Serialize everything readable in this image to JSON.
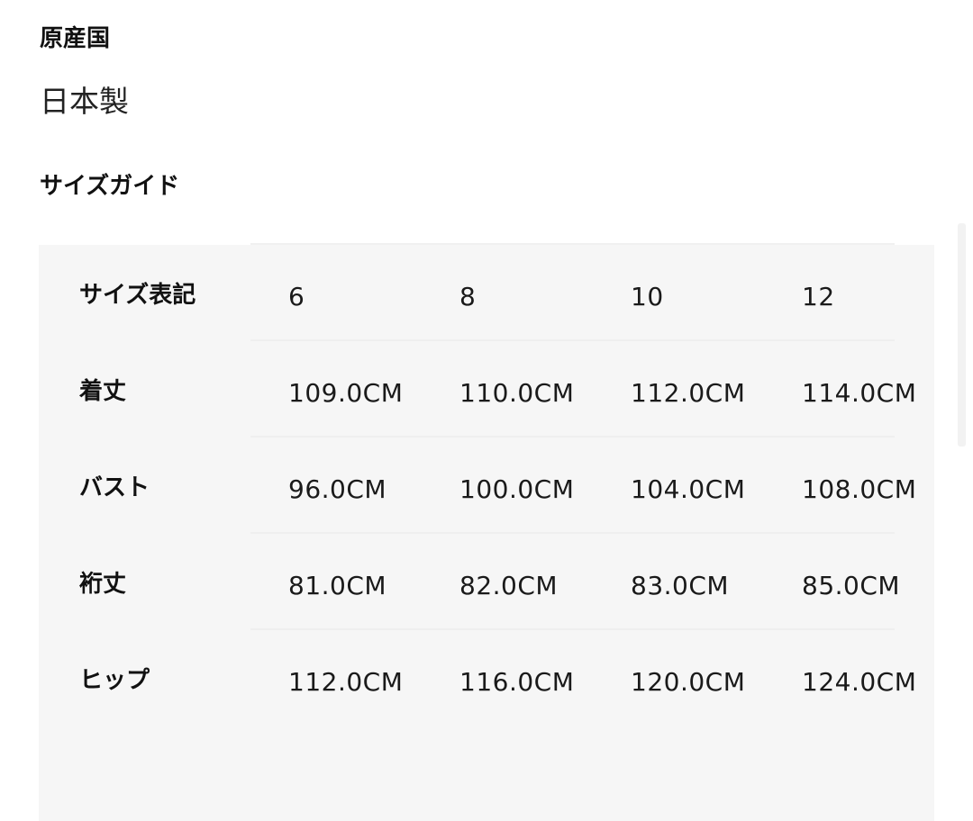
{
  "origin": {
    "heading": "原産国",
    "value": "日本製"
  },
  "size_guide": {
    "heading": "サイズガイド",
    "rows": [
      {
        "label": "サイズ表記",
        "values": [
          "6",
          "8",
          "10",
          "12"
        ]
      },
      {
        "label": "着丈",
        "values": [
          "109.0CM",
          "110.0CM",
          "112.0CM",
          "114.0CM"
        ]
      },
      {
        "label": "バスト",
        "values": [
          "96.0CM",
          "100.0CM",
          "104.0CM",
          "108.0CM"
        ]
      },
      {
        "label": "裄丈",
        "values": [
          "81.0CM",
          "82.0CM",
          "83.0CM",
          "85.0CM"
        ]
      },
      {
        "label": "ヒップ",
        "values": [
          "112.0CM",
          "116.0CM",
          "120.0CM",
          "124.0CM"
        ]
      }
    ]
  }
}
